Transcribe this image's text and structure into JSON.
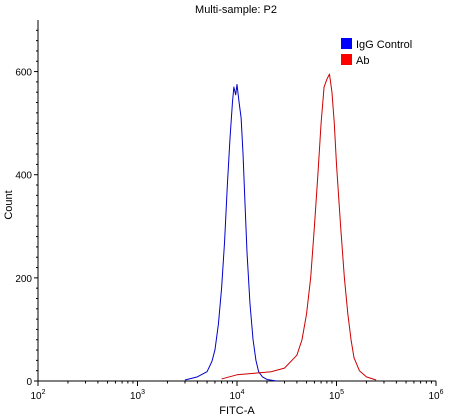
{
  "chart_data": {
    "type": "line",
    "title": "Multi-sample: P2",
    "xlabel": "FITC-A",
    "ylabel": "Count",
    "x_scale": "log",
    "xlim": [
      100,
      1000000
    ],
    "ylim": [
      0,
      700
    ],
    "x_ticks": [
      {
        "value": 100,
        "base": "10",
        "exp": "2"
      },
      {
        "value": 1000,
        "base": "10",
        "exp": "3"
      },
      {
        "value": 10000,
        "base": "10",
        "exp": "4"
      },
      {
        "value": 100000,
        "base": "10",
        "exp": "5"
      },
      {
        "value": 1000000,
        "base": "10",
        "exp": "6"
      }
    ],
    "y_ticks": [
      0,
      200,
      400,
      600
    ],
    "grid": false,
    "legend_position": "top-right",
    "series": [
      {
        "name": "IgG Control",
        "color": "#0000cc",
        "x": [
          3000,
          4000,
          5000,
          5600,
          6000,
          6500,
          7000,
          7500,
          8000,
          8500,
          9000,
          9300,
          9700,
          10000,
          10500,
          11000,
          11500,
          12000,
          12600,
          13500,
          14500,
          15500,
          16500,
          18000,
          20000,
          25000
        ],
        "y": [
          2,
          8,
          18,
          38,
          60,
          110,
          180,
          270,
          380,
          470,
          540,
          570,
          555,
          575,
          540,
          510,
          440,
          350,
          250,
          150,
          80,
          40,
          18,
          8,
          3,
          0
        ]
      },
      {
        "name": "Ab",
        "color": "#cc0000",
        "x": [
          7000,
          10000,
          15000,
          22000,
          30000,
          40000,
          45000,
          50000,
          55000,
          60000,
          65000,
          70000,
          75000,
          80000,
          85000,
          90000,
          95000,
          100000,
          110000,
          120000,
          130000,
          140000,
          150000,
          170000,
          200000,
          250000
        ],
        "y": [
          4,
          12,
          15,
          18,
          25,
          50,
          80,
          130,
          200,
          300,
          400,
          500,
          570,
          585,
          595,
          560,
          500,
          420,
          300,
          200,
          130,
          80,
          45,
          20,
          8,
          2
        ]
      }
    ]
  }
}
